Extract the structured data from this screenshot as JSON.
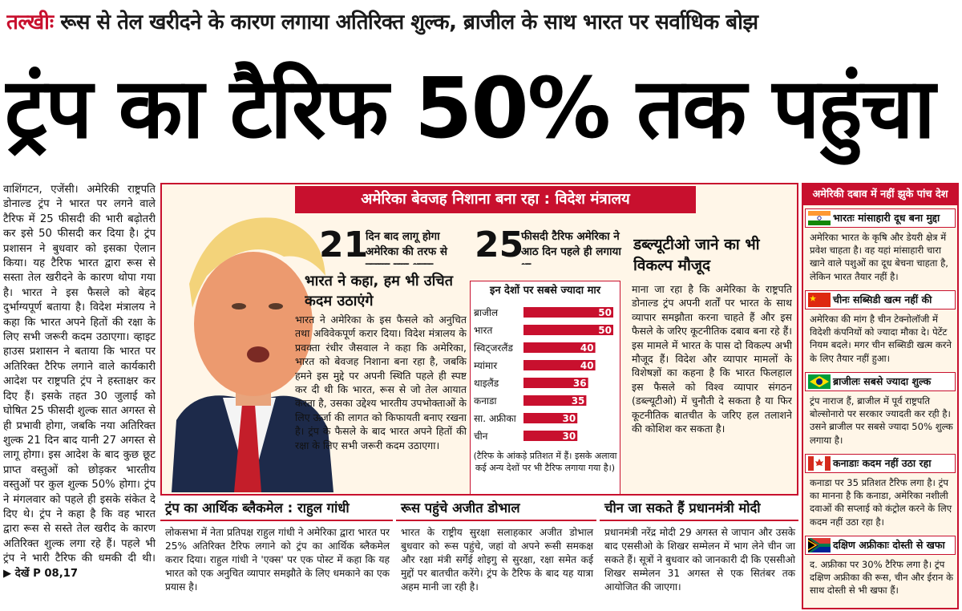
{
  "kicker": {
    "label": "तल्खीः",
    "text": "रूस से तेल खरीदने के कारण लगाया अतिरिक्त शुल्क, ब्राजील के साथ भारत पर सर्वाधिक बोझ"
  },
  "headline": "ट्रंप का टैरिफ 50% तक पहुंचा",
  "left_story": {
    "text": "वाशिंगटन, एजेंसी। अमेरिकी राष्ट्रपति डोनाल्ड ट्रंप ने भारत पर लगने वाले टैरिफ में 25 फीसदी की भारी बढ़ोतरी कर इसे 50 फीसदी कर दिया है। ट्रंप प्रशासन ने बुधवार को इसका ऐलान किया। यह टैरिफ भारत द्वारा रूस से सस्ता तेल खरीदने के कारण थोपा गया है। भारत ने इस फैसले को बेहद दुर्भाग्यपूर्ण बताया है। विदेश मंत्रालय ने कहा कि भारत अपने हितों की रक्षा के लिए सभी जरूरी कदम उठाएगा। व्हाइट हाउस प्रशासन ने बताया कि भारत पर अतिरिक्त टैरिफ लगाने वाले कार्यकारी आदेश पर राष्ट्रपति ट्रंप ने हस्ताक्षर कर दिए हैं। इसके तहत 30 जुलाई को घोषित 25 फीसदी शुल्क सात अगस्त से ही प्रभावी होगा, जबकि नया अतिरिक्त शुल्क 21 दिन बाद यानी 27 अगस्त से लागू होगा। इस आदेश के बाद कुछ छूट प्राप्त वस्तुओं को छोड़कर भारतीय वस्तुओं पर कुल शुल्क 50% होगा। ट्रंप ने मंगलवार को पहले ही इसके संकेत दे दिए थे। ट्रंप ने कहा है कि वह भारत द्वारा रूस से सस्ते तेल खरीद के कारण अतिरिक्त शुल्क लगा रहे हैं। पहले भी ट्रंप ने भारी टैरिफ की धमकी दी थी।",
    "ref": "▶ देखें P 08,17"
  },
  "center": {
    "banner": "अमेरिका बेवजह निशाना बना रहा : विदेश मंत्रालय",
    "stat1": {
      "num": "21",
      "caption": "दिन बाद लागू होगा अमेरिका की तरफ से बढ़ाया गया शुल्क"
    },
    "stat2": {
      "num": "25",
      "caption": "फीसदी टैरिफ अमेरिका ने आठ दिन पहले ही लगाया था"
    },
    "india_head": "भारत ने कहा, हम भी उचित कदम उठाएंगे",
    "india_body": "भारत ने अमेरिका के इस फैसले को अनुचित तथा अविवेकपूर्ण करार दिया। विदेश मंत्रालय के प्रवक्ता रंधीर जैसवाल ने कहा कि अमेरिका, भारत को बेवजह निशाना बना रहा है, जबकि हमने इस मुद्दे पर अपनी स्थिति पहले ही स्पष्ट कर दी थी कि भारत, रूस से जो तेल आयात करता है, उसका उद्देश्य भारतीय उपभोक्ताओं के लिए ऊर्जा की लागत को किफायती बनाए रखना है। ट्रंप के फैसले के बाद भारत अपने हितों की रक्षा के लिए सभी जरूरी कदम उठाएगा।",
    "wto_head": "डब्ल्यूटीओ जाने का भी विकल्प मौजूद",
    "wto_body": "माना जा रहा है कि अमेरिका के राष्ट्रपति डोनाल्ड ट्रंप अपनी शर्तों पर भारत के साथ व्यापार समझौता करना चाहते हैं और इस फैसले के जरिए कूटनीतिक दबाव बना रहे हैं। इस मामले में भारत के पास दो विकल्प अभी मौजूद हैं। विदेश और व्यापार मामलों के विशेषज्ञों का कहना है कि भारत फिलहाल इस फैसले को विश्व व्यापार संगठन (डब्ल्यूटीओ) में चुनौती दे सकता है या फिर कूटनीतिक बातचीत के जरिए हल तलाशने की कोशिश कर सकता है।",
    "chart_note": "(टैरिफ के आंकड़े प्रतिशत में हैं। इसके अलावा कई अन्य देशों पर भी टैरिफ लगाया गया है।)"
  },
  "chart_data": {
    "type": "bar",
    "title": "इन देशों पर सबसे ज्यादा मार",
    "categories": [
      "ब्राजील",
      "भारत",
      "स्विट्जरलैंड",
      "म्यांमार",
      "थाइलैंड",
      "कनाडा",
      "सा. अफ्रीका",
      "चीन"
    ],
    "values": [
      50,
      50,
      40,
      40,
      36,
      35,
      30,
      30
    ],
    "xlim": [
      0,
      50
    ],
    "orientation": "horizontal",
    "bar_color": "#c8102e",
    "grid": false
  },
  "bottom": [
    {
      "title": "ट्रंप का आर्थिक ब्लैकमेल : राहुल गांधी",
      "body": "लोकसभा में नेता प्रतिपक्ष राहुल गांधी ने अमेरिका द्वारा भारत पर 25% अतिरिक्त टैरिफ लगाने को ट्रंप का आर्थिक ब्लैकमेल करार दिया। राहुल गांधी ने 'एक्स' पर एक पोस्ट में कहा कि यह भारत को एक अनुचित व्यापार समझौते के लिए धमकाने का एक प्रयास है।"
    },
    {
      "title": "रूस पहुंचे अजीत डोभाल",
      "body": "भारत के राष्ट्रीय सुरक्षा सलाहकार अजीत डोभाल बुधवार को रूस पहुंचे, जहां वो अपने रूसी समकक्ष और रक्षा मंत्री सर्गेई शोइगु से सुरक्षा, रक्षा समेत कई मुद्दों पर बातचीत करेंगे। ट्रंप के टैरिफ के बाद यह यात्रा अहम मानी जा रही है।"
    },
    {
      "title": "चीन जा सकते हैं प्रधानमंत्री मोदी",
      "body": "प्रधानमंत्री नरेंद्र मोदी 29 अगस्त से जापान और उसके बाद एससीओ के शिखर सम्मेलन में भाग लेने चीन जा सकते हैं। सूत्रों ने बुधवार को जानकारी दी कि एससीओ शिखर सम्मेलन 31 अगस्त से एक सितंबर तक आयोजित की जाएगा।"
    }
  ],
  "right": {
    "title": "अमेरिकी दबाव में नहीं झुके पांच देश",
    "items": [
      {
        "flag": "india-flag-icon",
        "head": "भारतः मांसाहारी दूध बना मुद्दा",
        "body": "अमेरिका भारत के कृषि और डेयरी क्षेत्र में प्रवेश चाहता है। वह यहां मांसाहारी चारा खाने वाले पशुओं का दूध बेचना चाहता है, लेकिन भारत तैयार नहीं है।"
      },
      {
        "flag": "china-flag-icon",
        "head": "चीनः सब्सिडी खत्म नहीं की",
        "body": "अमेरिका की मांग है चीन टेक्नोलॉजी में विदेशी कंपनियों को ज्यादा मौका दे। पेटेंट नियम बदले। मगर चीन सब्सिडी खत्म करने के लिए तैयार नहीं हुआ।"
      },
      {
        "flag": "brazil-flag-icon",
        "head": "ब्राजीलः सबसे ज्यादा शुल्क",
        "body": "ट्रंप नाराज हैं, ब्राजील में पूर्व राष्ट्रपति बोल्सोनारो पर सरकार ज्यादती कर रही है। उसने ब्राजील पर सबसे ज्यादा 50% शुल्क लगाया है।"
      },
      {
        "flag": "canada-flag-icon",
        "head": "कनाडाः कदम नहीं उठा रहा",
        "body": "कनाडा पर 35 प्रतिशत टैरिफ लगा है। ट्रंप का मानना है कि कनाडा, अमेरिका नशीली दवाओं की सप्लाई को कंट्रोल करने के लिए कदम नहीं उठा रहा है।"
      },
      {
        "flag": "south-africa-flag-icon",
        "head": "दक्षिण अफ्रीकाः दोस्ती से खफा",
        "body": "द. अफ्रीका पर 30% टैरिफ लगा है। ट्रंप दक्षिण अफ्रीका की रूस, चीन और ईरान के साथ दोस्ती से भी खफा हैं।"
      }
    ]
  }
}
